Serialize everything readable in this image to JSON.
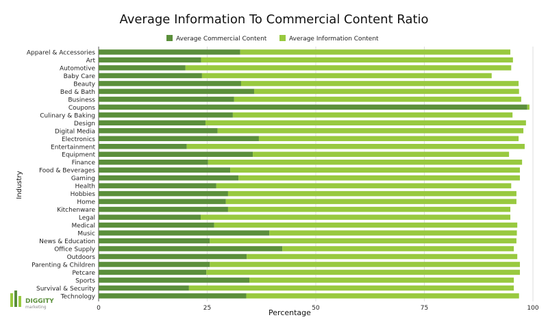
{
  "chart_data": {
    "type": "bar",
    "orientation": "horizontal",
    "stacked": true,
    "title": "Average Information To Commercial Content Ratio",
    "xlabel": "Percentage",
    "ylabel": "Industry",
    "xlim": [
      0,
      100
    ],
    "xticks": [
      0,
      25,
      50,
      75,
      100
    ],
    "grid": true,
    "legend_position": "top",
    "categories": [
      "Apparel & Accessories",
      "Art",
      "Automotive",
      "Baby Care",
      "Beauty",
      "Bed & Bath",
      "Business",
      "Coupons",
      "Culinary & Baking",
      "Design",
      "Digital Media",
      "Electronics",
      "Entertainment",
      "Equipment",
      "Finance",
      "Food & Beverages",
      "Gaming",
      "Health",
      "Hobbies",
      "Home",
      "Kitchenware",
      "Legal",
      "Medical",
      "Music",
      "News & Education",
      "Office Supply",
      "Outdoors",
      "Parenting & Children",
      "Petcare",
      "Sports",
      "Survival & Security",
      "Technology"
    ],
    "series": [
      {
        "name": "Average Commercial Content",
        "color": "#5b8f3b",
        "values": [
          32.6,
          23.6,
          20.0,
          23.8,
          32.8,
          35.8,
          31.2,
          98.7,
          30.9,
          24.6,
          27.4,
          36.9,
          20.3,
          35.5,
          25.2,
          30.3,
          32.2,
          27.1,
          29.8,
          29.3,
          29.8,
          23.5,
          26.6,
          39.3,
          25.6,
          42.3,
          34.1,
          25.6,
          24.8,
          34.7,
          20.8,
          34.0
        ]
      },
      {
        "name": "Average Information Content",
        "color": "#98c93f",
        "values": [
          62.2,
          71.8,
          75.0,
          66.7,
          63.9,
          61.0,
          66.1,
          0.5,
          64.4,
          73.8,
          70.4,
          59.8,
          77.8,
          59.0,
          72.3,
          66.7,
          64.8,
          67.9,
          66.4,
          66.9,
          65.0,
          71.3,
          69.8,
          57.0,
          70.6,
          53.3,
          62.3,
          71.4,
          72.2,
          60.9,
          74.8,
          62.8
        ]
      }
    ]
  },
  "logo": {
    "name": "DIGGITY",
    "sub": "marketing"
  }
}
